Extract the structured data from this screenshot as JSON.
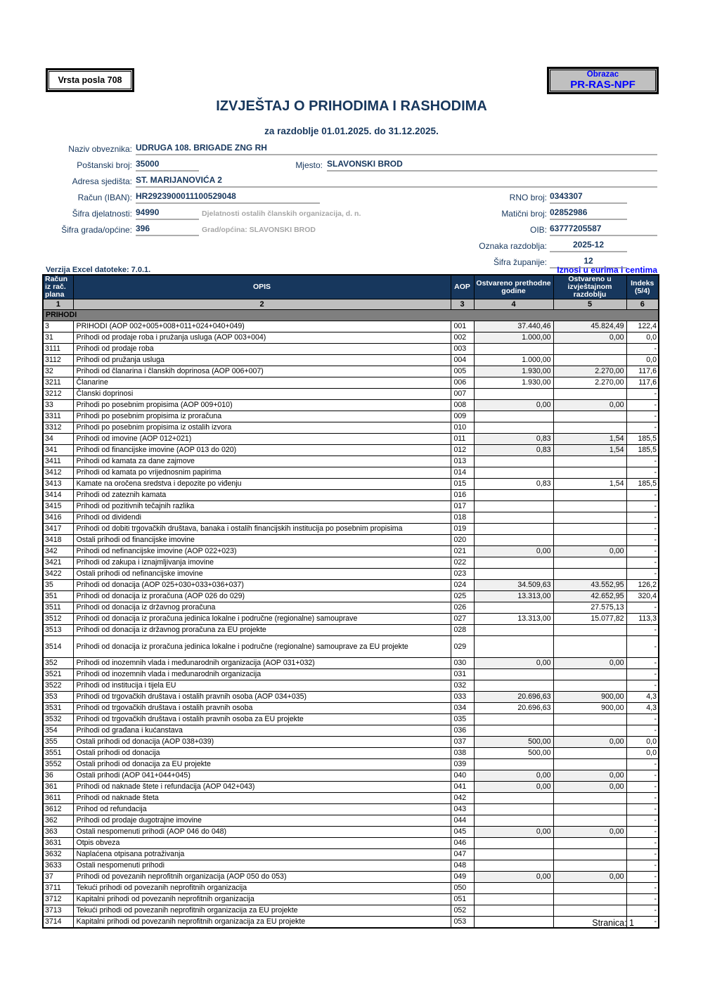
{
  "form": {
    "vrsta_posla": "Vrsta posla 708",
    "obrazac_label": "Obrazac",
    "obrazac_code": "PR-RAS-NPF",
    "title": "IZVJEŠTAJ O PRIHODIMA I RASHODIMA",
    "subtitle": "za razdoblje 01.01.2025. do 31.12.2025.",
    "fields": {
      "naziv_label": "Naziv obveznika:",
      "naziv_value": "UDRUGA 108. BRIGADE ZNG RH",
      "postanski_label": "Poštanski broj:",
      "postanski_value": "35000",
      "mjesto_label": "Mjesto:",
      "mjesto_value": "SLAVONSKI BROD",
      "adresa_label": "Adresa sjedišta:",
      "adresa_value": "ST. MARIJANOVIĆA 2",
      "iban_label": "Račun (IBAN):",
      "iban_value": "HR2923900011100529048",
      "rno_label": "RNO broj:",
      "rno_value": "0343307",
      "djelatnost_label": "Šifra djelatnosti:",
      "djelatnost_value": "94990",
      "djelatnost_note": "Djelatnosti ostalih članskih organizacija, d. n.",
      "maticni_label": "Matični broj:",
      "maticni_value": "02852986",
      "grad_label": "Šifra grada/općine:",
      "grad_value": "396",
      "grad_note": "Grad/općina: SLAVONSKI BROD",
      "oib_label": "OIB:",
      "oib_value": "63777205587",
      "oznaka_label": "Oznaka razdoblja:",
      "oznaka_value": "2025-12",
      "zupanija_label": "Šifra županije:",
      "zupanija_value": "12"
    },
    "verzija": "Verzija Excel datoteke: 7.0.1.",
    "iznosi_note": "Iznosi u eurima i centima"
  },
  "table": {
    "headers": {
      "racun": "Račun iz rač. plana",
      "opis": "OPIS",
      "aop": "AOP",
      "prev": "Ostvareno prethodne godine",
      "curr": "Ostvareno u izvještajnom razdoblju",
      "idx": "Indeks (5/4)"
    },
    "col_numbers": [
      "1",
      "2",
      "3",
      "4",
      "5",
      "6"
    ],
    "section": "PRIHODI",
    "rows": [
      {
        "racun": "3",
        "opis": "PRIHODI (AOP 002+005+008+011+024+040+049)",
        "aop": "001",
        "prev": "37.440,46",
        "curr": "45.824,49",
        "idx": "122,4",
        "shaded": true
      },
      {
        "racun": "31",
        "opis": "Prihodi od prodaje roba i pružanja usluga (AOP 003+004)",
        "aop": "002",
        "prev": "1.000,00",
        "curr": "0,00",
        "idx": "0,0",
        "shaded": true
      },
      {
        "racun": "3111",
        "opis": "Prihodi od prodaje roba",
        "aop": "003",
        "prev": "",
        "curr": "",
        "idx": "-"
      },
      {
        "racun": "3112",
        "opis": "Prihodi od pružanja usluga",
        "aop": "004",
        "prev": "1.000,00",
        "curr": "",
        "idx": "0,0"
      },
      {
        "racun": "32",
        "opis": "Prihodi od članarina i članskih doprinosa (AOP 006+007)",
        "aop": "005",
        "prev": "1.930,00",
        "curr": "2.270,00",
        "idx": "117,6",
        "shaded": true
      },
      {
        "racun": "3211",
        "opis": "Članarine",
        "aop": "006",
        "prev": "1.930,00",
        "curr": "2.270,00",
        "idx": "117,6"
      },
      {
        "racun": "3212",
        "opis": "Članski doprinosi",
        "aop": "007",
        "prev": "",
        "curr": "",
        "idx": "-"
      },
      {
        "racun": "33",
        "opis": "Prihodi po posebnim propisima (AOP 009+010)",
        "aop": "008",
        "prev": "0,00",
        "curr": "0,00",
        "idx": "-",
        "shaded": true
      },
      {
        "racun": "3311",
        "opis": "Prihodi po posebnim propisima iz proračuna",
        "aop": "009",
        "prev": "",
        "curr": "",
        "idx": "-"
      },
      {
        "racun": "3312",
        "opis": "Prihodi po posebnim propisima iz ostalih izvora",
        "aop": "010",
        "prev": "",
        "curr": "",
        "idx": "-"
      },
      {
        "racun": "34",
        "opis": "Prihodi od imovine (AOP 012+021)",
        "aop": "011",
        "prev": "0,83",
        "curr": "1,54",
        "idx": "185,5",
        "shaded": true
      },
      {
        "racun": "341",
        "opis": "Prihodi od financijske imovine (AOP 013 do 020)",
        "aop": "012",
        "prev": "0,83",
        "curr": "1,54",
        "idx": "185,5",
        "shaded": true
      },
      {
        "racun": "3411",
        "opis": "Prihodi od kamata za dane zajmove",
        "aop": "013",
        "prev": "",
        "curr": "",
        "idx": "-"
      },
      {
        "racun": "3412",
        "opis": "Prihodi od kamata po vrijednosnim papirima",
        "aop": "014",
        "prev": "",
        "curr": "",
        "idx": "-"
      },
      {
        "racun": "3413",
        "opis": "Kamate na oročena sredstva i depozite po viđenju",
        "aop": "015",
        "prev": "0,83",
        "curr": "1,54",
        "idx": "185,5"
      },
      {
        "racun": "3414",
        "opis": "Prihodi od zateznih kamata",
        "aop": "016",
        "prev": "",
        "curr": "",
        "idx": "-"
      },
      {
        "racun": "3415",
        "opis": "Prihodi od pozitivnih tečajnih razlika",
        "aop": "017",
        "prev": "",
        "curr": "",
        "idx": "-"
      },
      {
        "racun": "3416",
        "opis": "Prihodi od dividendi",
        "aop": "018",
        "prev": "",
        "curr": "",
        "idx": "-"
      },
      {
        "racun": "3417",
        "opis": "Prihodi od dobiti trgovačkih društava, banaka i ostalih financijskih institucija po posebnim propisima",
        "aop": "019",
        "prev": "",
        "curr": "",
        "idx": "-"
      },
      {
        "racun": "3418",
        "opis": "Ostali prihodi od financijske imovine",
        "aop": "020",
        "prev": "",
        "curr": "",
        "idx": "-"
      },
      {
        "racun": "342",
        "opis": "Prihodi od nefinancijske imovine (AOP 022+023)",
        "aop": "021",
        "prev": "0,00",
        "curr": "0,00",
        "idx": "-",
        "shaded": true
      },
      {
        "racun": "3421",
        "opis": "Prihodi od zakupa i iznajmljivanja imovine",
        "aop": "022",
        "prev": "",
        "curr": "",
        "idx": "-"
      },
      {
        "racun": "3422",
        "opis": "Ostali prihodi od nefinancijske imovine",
        "aop": "023",
        "prev": "",
        "curr": "",
        "idx": "-"
      },
      {
        "racun": "35",
        "opis": "Prihodi od donacija (AOP 025+030+033+036+037)",
        "aop": "024",
        "prev": "34.509,63",
        "curr": "43.552,95",
        "idx": "126,2",
        "shaded": true
      },
      {
        "racun": "351",
        "opis": "Prihodi od donacija iz proračuna (AOP 026 do 029)",
        "aop": "025",
        "prev": "13.313,00",
        "curr": "42.652,95",
        "idx": "320,4",
        "shaded": true
      },
      {
        "racun": "3511",
        "opis": "Prihodi od donacija iz državnog proračuna",
        "aop": "026",
        "prev": "",
        "curr": "27.575,13",
        "idx": "-"
      },
      {
        "racun": "3512",
        "opis": "Prihodi od donacija iz proračuna jedinica lokalne i područne (regionalne) samouprave",
        "aop": "027",
        "prev": "13.313,00",
        "curr": "15.077,82",
        "idx": "113,3"
      },
      {
        "racun": "3513",
        "opis": "Prihodi od donacija iz državnog proračuna za EU projekte",
        "aop": "028",
        "prev": "",
        "curr": "",
        "idx": "-"
      },
      {
        "racun": "3514",
        "opis": "Prihodi od donacija iz proračuna jedinica lokalne i područne (regionalne) samouprave za EU projekte",
        "aop": "029",
        "prev": "",
        "curr": "",
        "idx": "-",
        "tall": true
      },
      {
        "racun": "352",
        "opis": "Prihodi od inozemnih vlada i međunarodnih organizacija (AOP 031+032)",
        "aop": "030",
        "prev": "0,00",
        "curr": "0,00",
        "idx": "-",
        "shaded": true
      },
      {
        "racun": "3521",
        "opis": "Prihodi od inozemnih vlada i međunarodnih organizacija",
        "aop": "031",
        "prev": "",
        "curr": "",
        "idx": "-"
      },
      {
        "racun": "3522",
        "opis": "Prihodi od institucija i tijela EU",
        "aop": "032",
        "prev": "",
        "curr": "",
        "idx": "-"
      },
      {
        "racun": "353",
        "opis": "Prihodi od trgovačkih društava i ostalih pravnih osoba (AOP 034+035)",
        "aop": "033",
        "prev": "20.696,63",
        "curr": "900,00",
        "idx": "4,3",
        "shaded": true
      },
      {
        "racun": "3531",
        "opis": "Prihodi od trgovačkih društava i ostalih pravnih osoba",
        "aop": "034",
        "prev": "20.696,63",
        "curr": "900,00",
        "idx": "4,3"
      },
      {
        "racun": "3532",
        "opis": "Prihodi od trgovačkih društava i ostalih pravnih osoba za EU projekte",
        "aop": "035",
        "prev": "",
        "curr": "",
        "idx": "-"
      },
      {
        "racun": "354",
        "opis": "Prihodi od građana i kućanstava",
        "aop": "036",
        "prev": "",
        "curr": "",
        "idx": "-"
      },
      {
        "racun": "355",
        "opis": "Ostali prihodi od donacija (AOP 038+039)",
        "aop": "037",
        "prev": "500,00",
        "curr": "0,00",
        "idx": "0,0",
        "shaded": true
      },
      {
        "racun": "3551",
        "opis": "Ostali prihodi od donacija",
        "aop": "038",
        "prev": "500,00",
        "curr": "",
        "idx": "0,0"
      },
      {
        "racun": "3552",
        "opis": "Ostali prihodi od donacija za EU projekte",
        "aop": "039",
        "prev": "",
        "curr": "",
        "idx": "-"
      },
      {
        "racun": "36",
        "opis": "Ostali prihodi (AOP 041+044+045)",
        "aop": "040",
        "prev": "0,00",
        "curr": "0,00",
        "idx": "-",
        "shaded": true
      },
      {
        "racun": "361",
        "opis": "Prihodi od naknade štete i refundacija (AOP 042+043)",
        "aop": "041",
        "prev": "0,00",
        "curr": "0,00",
        "idx": "-",
        "shaded": true
      },
      {
        "racun": "3611",
        "opis": "Prihodi od naknade šteta",
        "aop": "042",
        "prev": "",
        "curr": "",
        "idx": "-"
      },
      {
        "racun": "3612",
        "opis": "Prihod od refundacija",
        "aop": "043",
        "prev": "",
        "curr": "",
        "idx": "-"
      },
      {
        "racun": "362",
        "opis": "Prihodi od prodaje dugotrajne imovine",
        "aop": "044",
        "prev": "",
        "curr": "",
        "idx": "-"
      },
      {
        "racun": "363",
        "opis": "Ostali nespomenuti prihodi (AOP 046 do 048)",
        "aop": "045",
        "prev": "0,00",
        "curr": "0,00",
        "idx": "-",
        "shaded": true
      },
      {
        "racun": "3631",
        "opis": "Otpis obveza",
        "aop": "046",
        "prev": "",
        "curr": "",
        "idx": "-"
      },
      {
        "racun": "3632",
        "opis": "Naplaćena otpisana potraživanja",
        "aop": "047",
        "prev": "",
        "curr": "",
        "idx": "-"
      },
      {
        "racun": "3633",
        "opis": "Ostali nespomenuti prihodi",
        "aop": "048",
        "prev": "",
        "curr": "",
        "idx": "-"
      },
      {
        "racun": "37",
        "opis": "Prihodi od povezanih neprofitnih organizacija (AOP 050 do 053)",
        "aop": "049",
        "prev": "0,00",
        "curr": "0,00",
        "idx": "-",
        "shaded": true
      },
      {
        "racun": "3711",
        "opis": "Tekući prihodi od povezanih neprofitnih organizacija",
        "aop": "050",
        "prev": "",
        "curr": "",
        "idx": "-"
      },
      {
        "racun": "3712",
        "opis": "Kapitalni prihodi od povezanih neprofitnih organizacija",
        "aop": "051",
        "prev": "",
        "curr": "",
        "idx": "-"
      },
      {
        "racun": "3713",
        "opis": "Tekući prihodi od povezanih neprofitnih organizacija za EU projekte",
        "aop": "052",
        "prev": "",
        "curr": "",
        "idx": "-"
      },
      {
        "racun": "3714",
        "opis": "Kapitalni prihodi od povezanih neprofitnih organizacija za EU projekte",
        "aop": "053",
        "prev": "",
        "curr": "",
        "idx": "-"
      }
    ]
  },
  "footer": {
    "page": "Stranica: 1"
  },
  "colors": {
    "navy": "#17375D",
    "blue": "#0000FF",
    "header_bg": "#17375D",
    "colnum_bg": "#BFBFBF",
    "section_bg": "#7F7F7F",
    "shaded_cell": "#F0F0F0",
    "note_gray": "#A6A6A6",
    "box_gray": "#C0C0C0"
  }
}
